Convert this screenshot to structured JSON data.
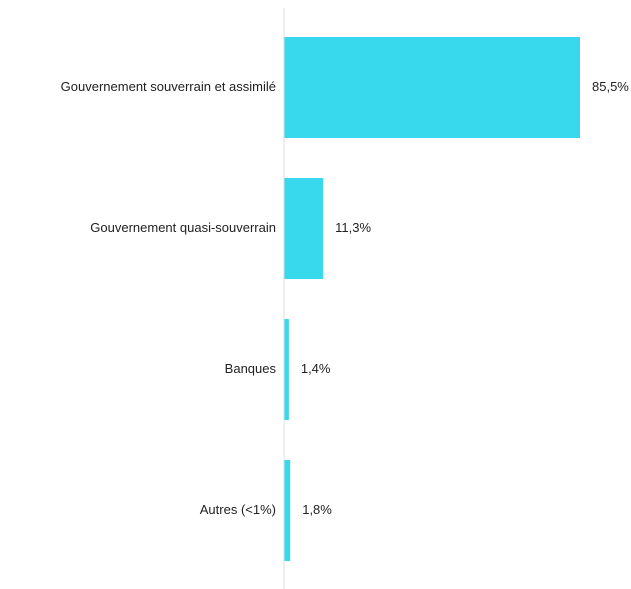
{
  "chart_data": {
    "type": "bar",
    "orientation": "horizontal",
    "categories": [
      "Gouvernement souverrain et assimilé",
      "Gouvernement quasi-souverrain",
      "Banques",
      "Autres (<1%)"
    ],
    "values": [
      85.5,
      11.3,
      1.4,
      1.8
    ],
    "value_labels": [
      "85,5%",
      "11,3%",
      "1,4%",
      "1,8%"
    ],
    "unit": "%",
    "xlim": [
      0,
      85.5
    ],
    "grid": false,
    "legend": "none",
    "bar_color": "#38D9EC",
    "axis_color": "#DDDDDD"
  }
}
